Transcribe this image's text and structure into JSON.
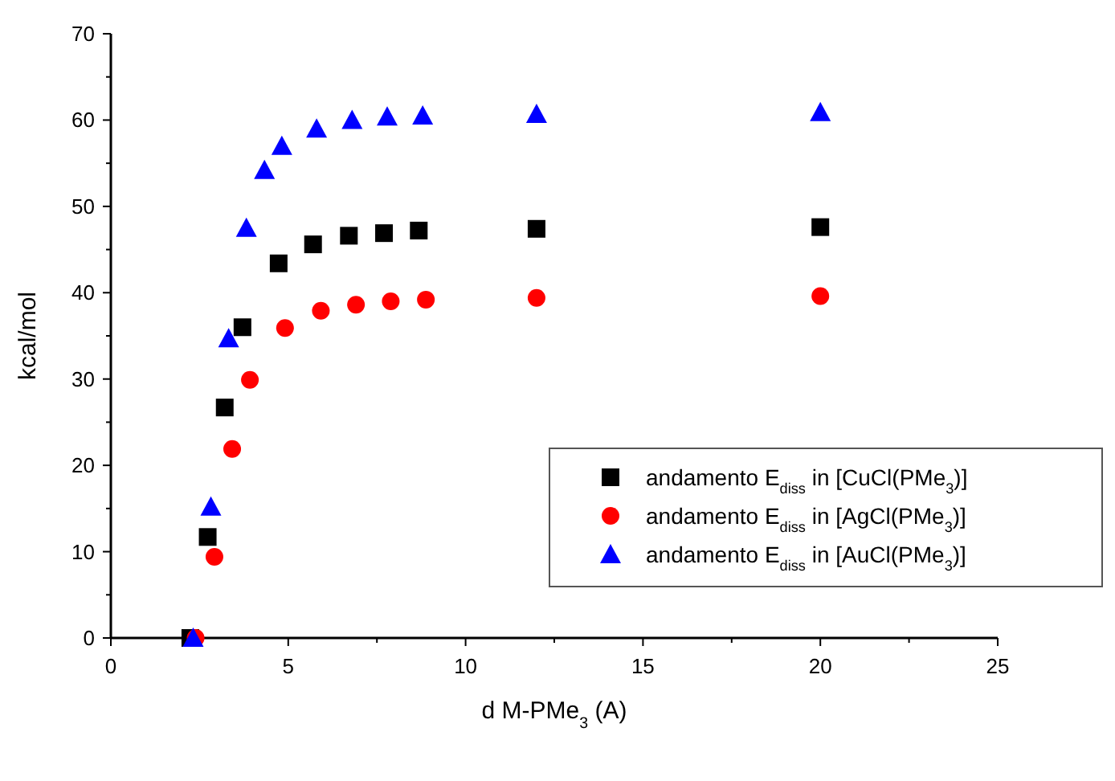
{
  "chart_data": {
    "type": "scatter",
    "xlabel": "d M-PMe$_{3}$ (A)",
    "ylabel": "kcal/mol",
    "xlim": [
      0,
      25
    ],
    "xticks": [
      0,
      5,
      10,
      15,
      20,
      25
    ],
    "ylim": [
      0,
      70
    ],
    "yticks": [
      0,
      10,
      20,
      30,
      40,
      50,
      60,
      70
    ],
    "grid": false,
    "legend": "bottom right",
    "series": [
      {
        "name": "andamento E$_{diss}$ in [CuCl(PMe$_{3}$)]",
        "color": "#000000",
        "marker": "square",
        "x": [
          2.24,
          2.73,
          3.21,
          3.71,
          4.73,
          5.7,
          6.71,
          7.7,
          8.68,
          12,
          20
        ],
        "values": [
          0,
          11.7,
          26.7,
          36.0,
          43.4,
          45.6,
          46.6,
          46.9,
          47.2,
          47.4,
          47.6
        ]
      },
      {
        "name": "andamento E$_{diss}$ in [AgCl(PMe$_{3}$)]",
        "color": "#ff0000",
        "marker": "circle",
        "x": [
          2.39,
          2.92,
          3.42,
          3.92,
          4.91,
          5.92,
          6.91,
          7.89,
          8.88,
          12,
          20
        ],
        "values": [
          0,
          9.4,
          21.9,
          29.9,
          35.9,
          37.9,
          38.6,
          39.0,
          39.2,
          39.4,
          39.6
        ]
      },
      {
        "name": "andamento E$_{diss}$ in [AuCl(PMe$_{3}$)]",
        "color": "#0000ff",
        "marker": "triangle",
        "x": [
          2.32,
          2.82,
          3.32,
          3.82,
          4.33,
          4.82,
          5.8,
          6.8,
          7.79,
          8.79,
          12,
          20
        ],
        "values": [
          0,
          15.2,
          34.7,
          47.5,
          54.2,
          57.0,
          59.0,
          60.0,
          60.4,
          60.5,
          60.7,
          60.9
        ]
      }
    ]
  }
}
